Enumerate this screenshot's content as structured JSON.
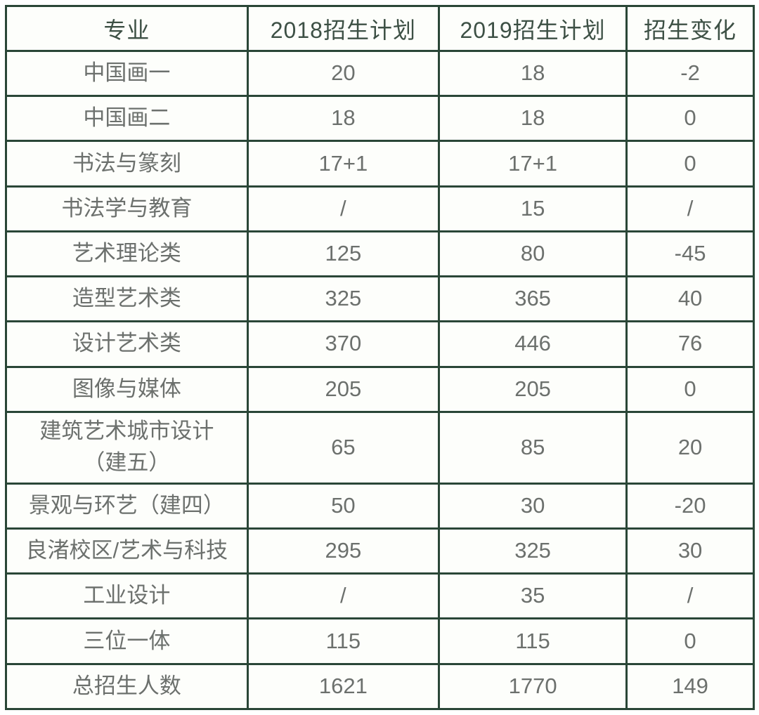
{
  "chart_data": {
    "type": "table",
    "columns": [
      "专业",
      "2018招生计划",
      "2019招生计划",
      "招生变化"
    ],
    "rows": [
      [
        "中国画一",
        "20",
        "18",
        "-2"
      ],
      [
        "中国画二",
        "18",
        "18",
        "0"
      ],
      [
        "书法与篆刻",
        "17+1",
        "17+1",
        "0"
      ],
      [
        "书法学与教育",
        "/",
        "15",
        "/"
      ],
      [
        "艺术理论类",
        "125",
        "80",
        "-45"
      ],
      [
        "造型艺术类",
        "325",
        "365",
        "40"
      ],
      [
        "设计艺术类",
        "370",
        "446",
        "76"
      ],
      [
        "图像与媒体",
        "205",
        "205",
        "0"
      ],
      [
        "建筑艺术城市设计\n（建五）",
        "65",
        "85",
        "20"
      ],
      [
        "景观与环艺（建四）",
        "50",
        "30",
        "-20"
      ],
      [
        "良渚校区/艺术与科技",
        "295",
        "325",
        "30"
      ],
      [
        "工业设计",
        "/",
        "35",
        "/"
      ],
      [
        "三位一体",
        "115",
        "115",
        "0"
      ],
      [
        "总招生人数",
        "1621",
        "1770",
        "149"
      ]
    ]
  },
  "colors": {
    "border": "#2a4637",
    "header_text": "#3d5045",
    "body_text": "#6c706d",
    "cell_bg": "#fdfefb",
    "page_bg": "#ffffff"
  }
}
